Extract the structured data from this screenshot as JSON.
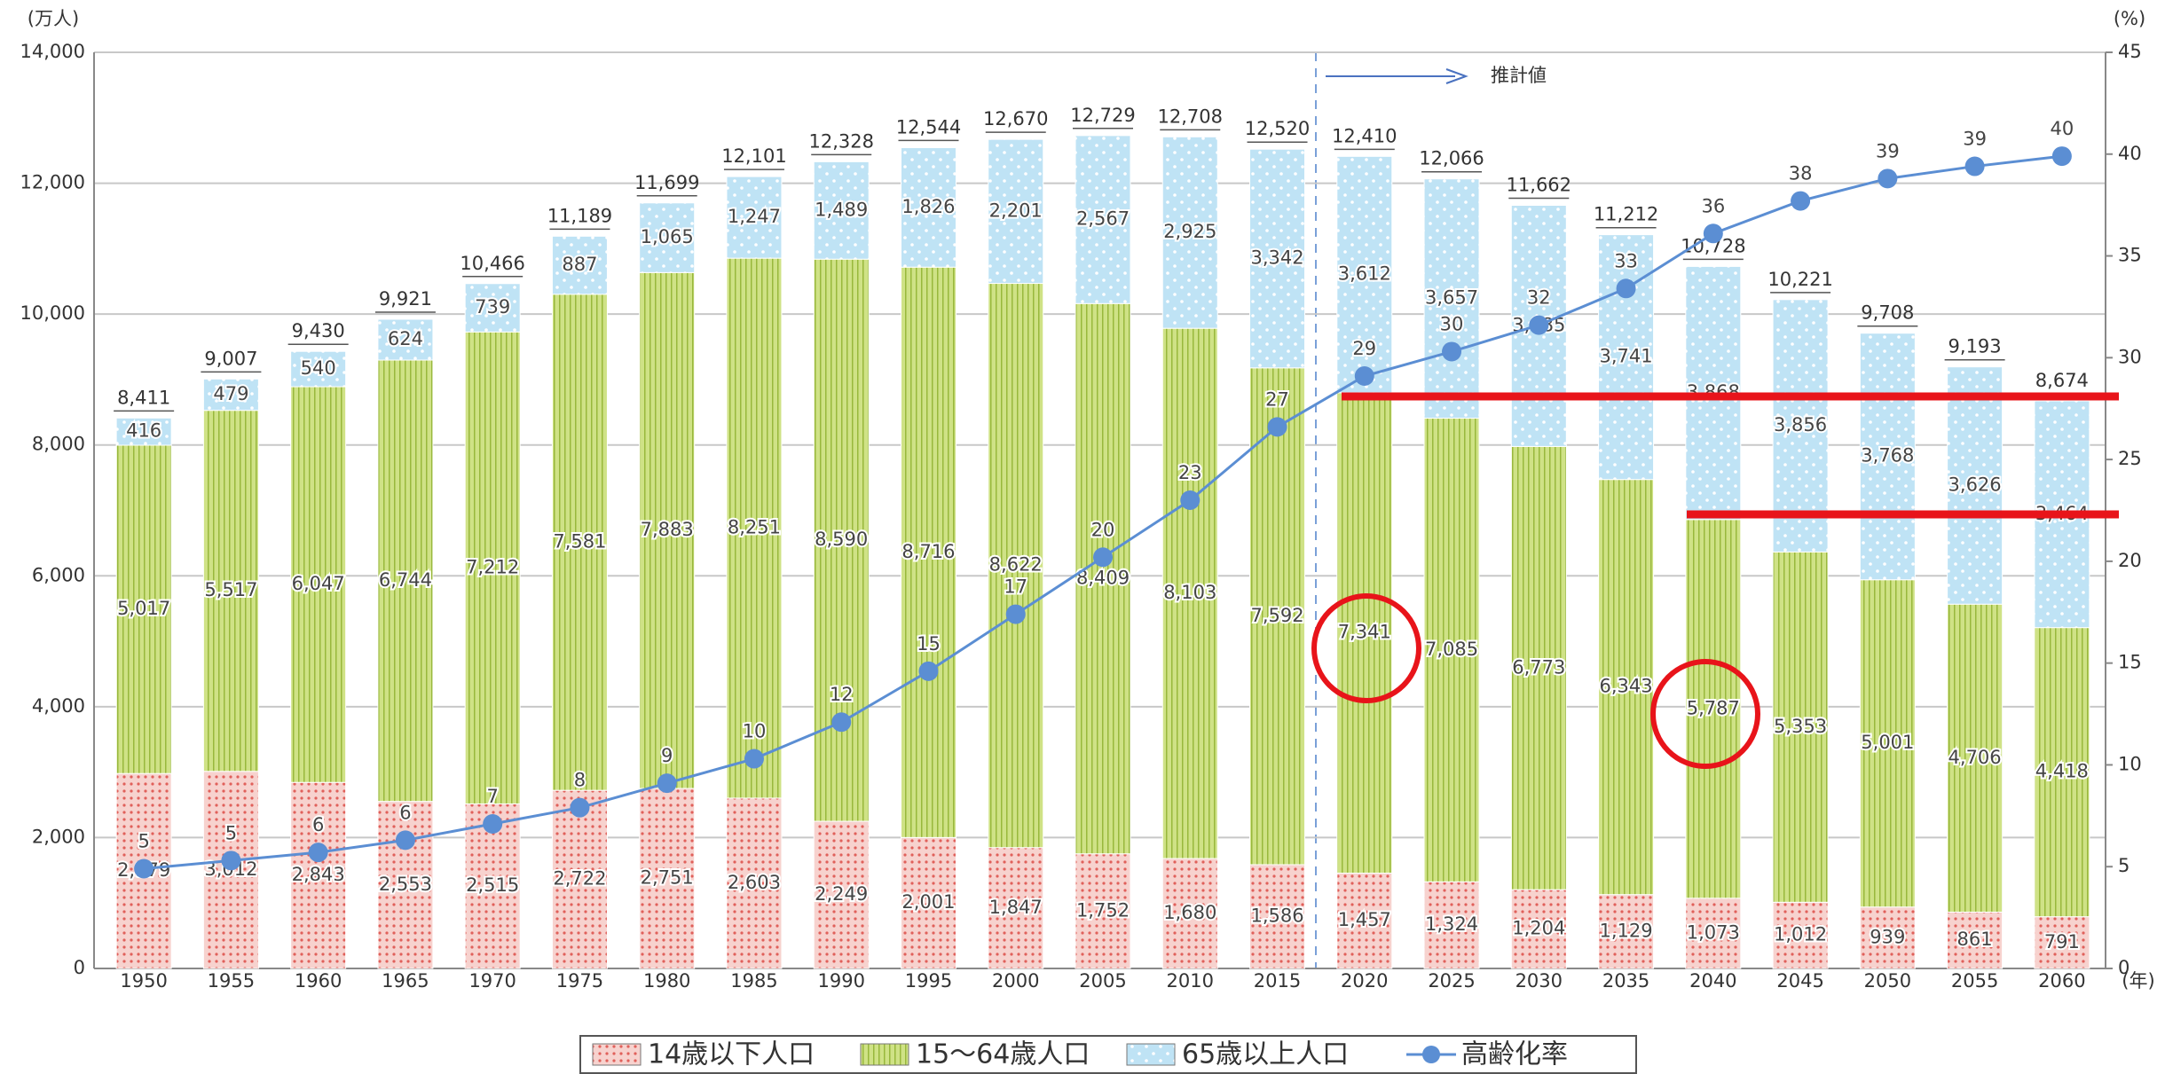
{
  "chart_data": {
    "type": "stacked_bar_line",
    "y_unit_label": "(万人)",
    "y2_unit_label": "(%)",
    "x_unit_label": "(年)",
    "annotation": "推計値",
    "categories": [
      "1950",
      "1955",
      "1960",
      "1965",
      "1970",
      "1975",
      "1980",
      "1985",
      "1990",
      "1995",
      "2000",
      "2005",
      "2010",
      "2015",
      "2020",
      "2025",
      "2030",
      "2035",
      "2040",
      "2045",
      "2050",
      "2055",
      "2060"
    ],
    "series": [
      {
        "name": "14歳以下人口",
        "color": "#f5c6c2",
        "values": [
          2979,
          3012,
          2843,
          2553,
          2515,
          2722,
          2751,
          2603,
          2249,
          2001,
          1847,
          1752,
          1680,
          1586,
          1457,
          1324,
          1204,
          1129,
          1073,
          1012,
          939,
          861,
          791
        ],
        "value_labels": [
          "2,979",
          "3,012",
          "2,843",
          "2,553",
          "2,515",
          "2,722",
          "2,751",
          "2,603",
          "2,249",
          "2,001",
          "1,847",
          "1,752",
          "1,680",
          "1,586",
          "1,457",
          "1,324",
          "1,204",
          "1,129",
          "1,073",
          "1,012",
          "939",
          "861",
          "791"
        ]
      },
      {
        "name": "15～64歳人口",
        "color": "#c8dd7c",
        "values": [
          5017,
          5517,
          6047,
          6744,
          7212,
          7581,
          7883,
          8251,
          8590,
          8716,
          8622,
          8409,
          8103,
          7592,
          7341,
          7085,
          6773,
          6343,
          5787,
          5353,
          5001,
          4706,
          4418
        ],
        "value_labels": [
          "5,017",
          "5,517",
          "6,047",
          "6,744",
          "7,212",
          "7,581",
          "7,883",
          "8,251",
          "8,590",
          "8,716",
          "8,622",
          "8,409",
          "8,103",
          "7,592",
          "7,341",
          "7,085",
          "6,773",
          "6,343",
          "5,787",
          "5,353",
          "5,001",
          "4,706",
          "4,418"
        ]
      },
      {
        "name": "65歳以上人口",
        "color": "#bfe3f5",
        "values": [
          416,
          479,
          540,
          624,
          739,
          887,
          1065,
          1247,
          1489,
          1826,
          2201,
          2567,
          2925,
          3342,
          3612,
          3657,
          3685,
          3741,
          3868,
          3856,
          3768,
          3626,
          3464
        ],
        "value_labels": [
          "416",
          "479",
          "540",
          "624",
          "739",
          "887",
          "1,065",
          "1,247",
          "1,489",
          "1,826",
          "2,201",
          "2,567",
          "2,925",
          "3,342",
          "3,612",
          "3,657",
          "3,685",
          "3,741",
          "3,868",
          "3,856",
          "3,768",
          "3,626",
          "3,464"
        ]
      },
      {
        "name": "高齢化率",
        "color": "#5b8ed3",
        "axis": "y2",
        "values": [
          4.9,
          5.3,
          5.7,
          6.3,
          7.1,
          7.9,
          9.1,
          10.3,
          12.1,
          14.6,
          17.4,
          20.2,
          23.0,
          26.6,
          29.1,
          30.3,
          31.6,
          33.4,
          36.1,
          37.7,
          38.8,
          39.4,
          39.9
        ],
        "value_labels": [
          "5",
          "5",
          "6",
          "6",
          "7",
          "8",
          "9",
          "10",
          "12",
          "15",
          "17",
          "20",
          "23",
          "27",
          "29",
          "30",
          "32",
          "33",
          "36",
          "38",
          "39",
          "39",
          "40"
        ]
      }
    ],
    "totals": {
      "values": [
        8411,
        9007,
        9430,
        9921,
        10466,
        11189,
        11699,
        12101,
        12328,
        12544,
        12670,
        12729,
        12708,
        12520,
        12410,
        12066,
        11662,
        11212,
        10728,
        10221,
        9708,
        9193,
        8674
      ],
      "value_labels": [
        "8,411",
        "9,007",
        "9,430",
        "9,921",
        "10,466",
        "11,189",
        "11,699",
        "12,101",
        "12,328",
        "12,544",
        "12,670",
        "12,729",
        "12,708",
        "12,520",
        "12,410",
        "12,066",
        "11,662",
        "11,212",
        "10,728",
        "10,221",
        "9,708",
        "9,193",
        "8,674"
      ]
    },
    "ylim": [
      0,
      14000
    ],
    "yticks": [
      0,
      {
        "value": 2000,
        "label": "2,000"
      },
      {
        "value": 4000,
        "label": "4,000"
      },
      {
        "value": 6000,
        "label": "6,000"
      },
      {
        "value": 8000,
        "label": "8,000"
      },
      {
        "value": 10000,
        "label": "10,000"
      },
      {
        "value": 12000,
        "label": "12,000"
      },
      {
        "value": 14000,
        "label": "14,000"
      }
    ],
    "y2lim": [
      0,
      45
    ],
    "y2ticks": [
      0,
      5,
      10,
      15,
      20,
      25,
      30,
      35,
      40,
      45
    ],
    "grid": true
  }
}
